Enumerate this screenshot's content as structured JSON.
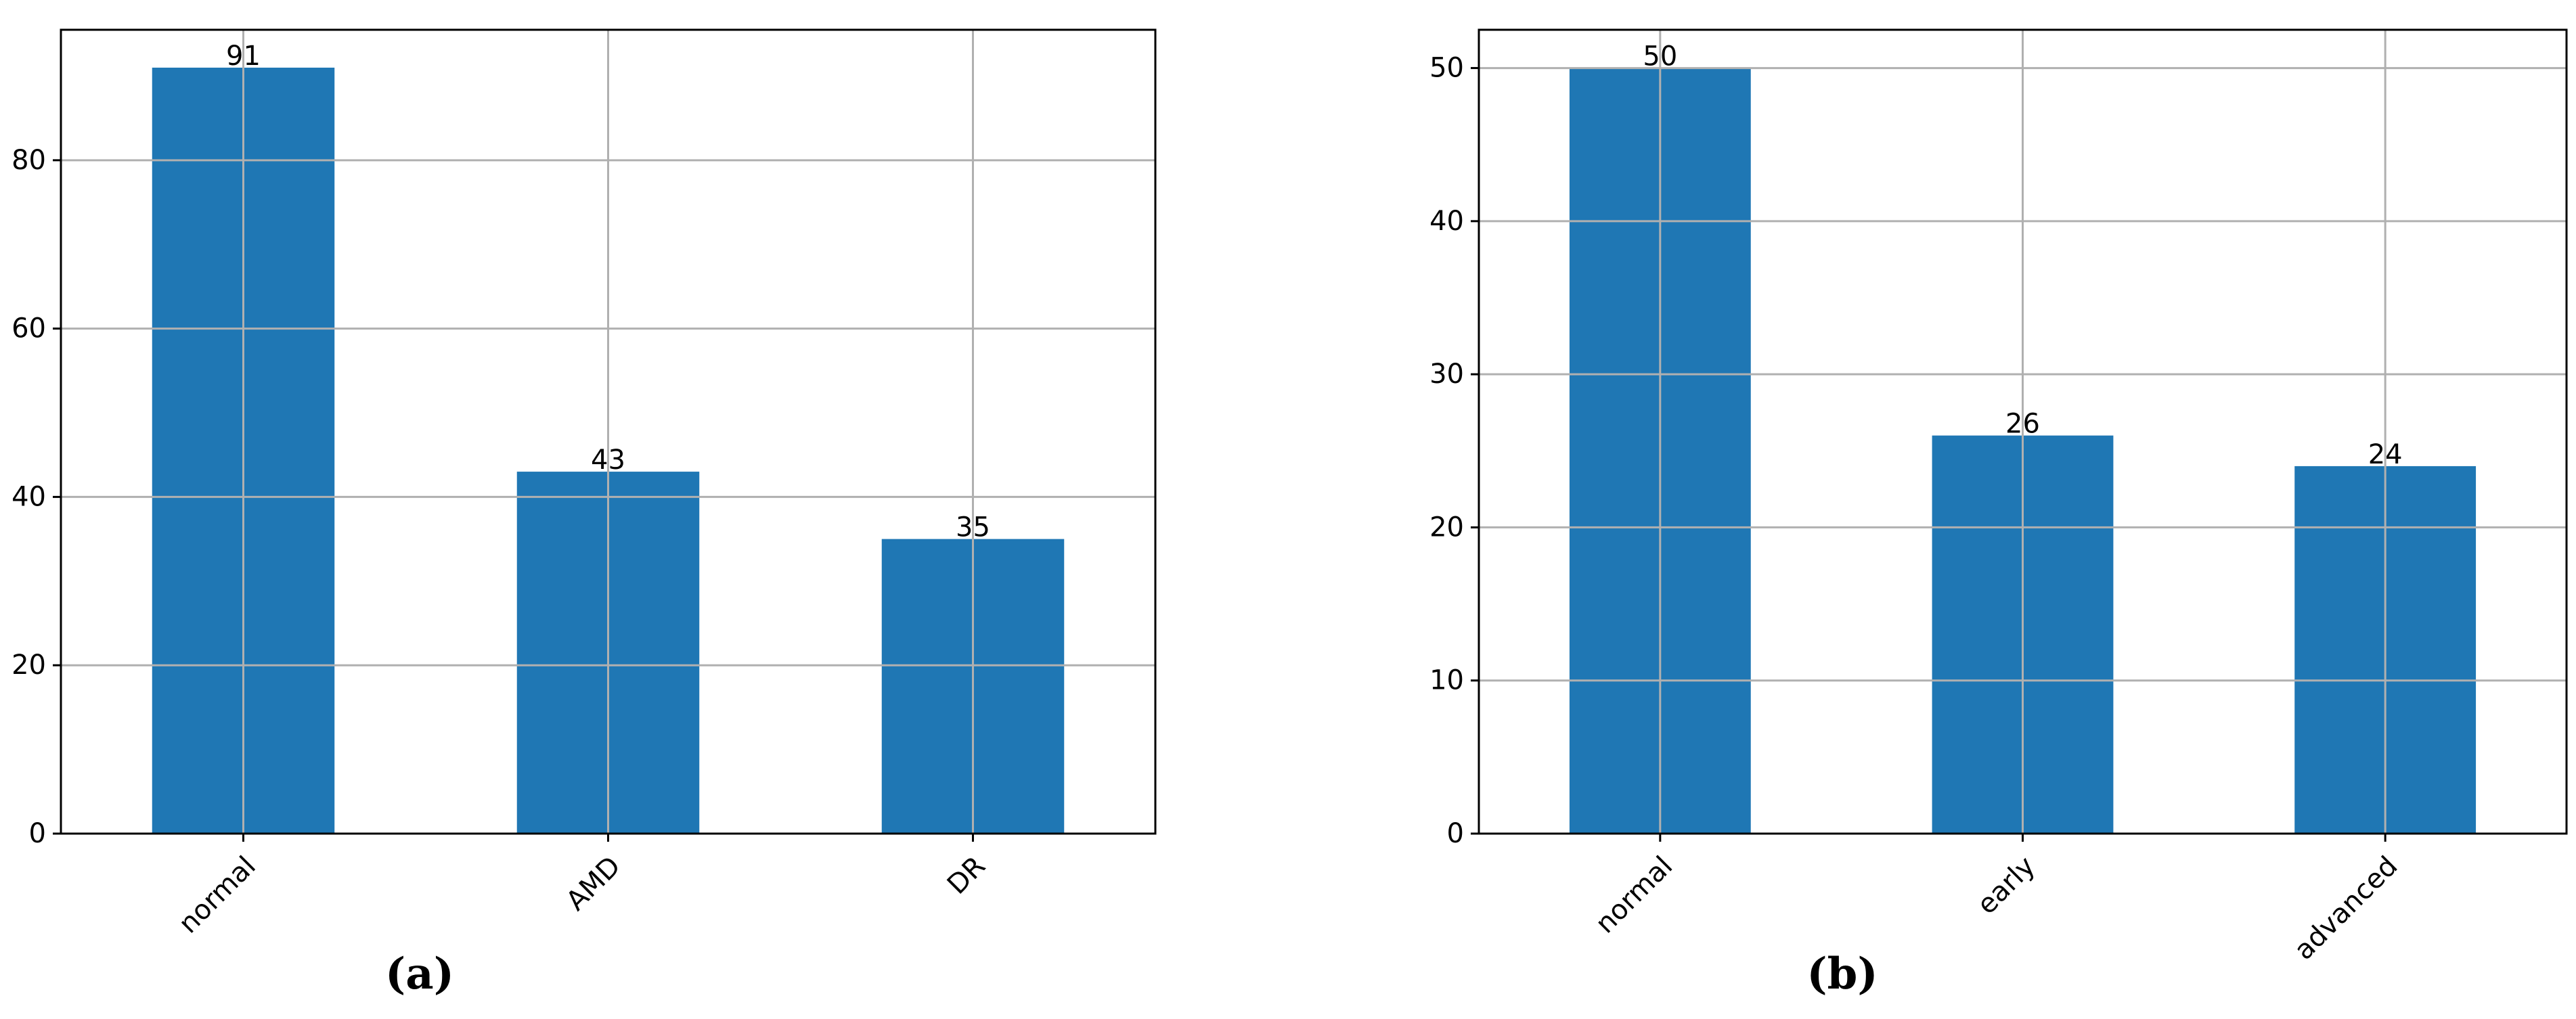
{
  "panels": [
    {
      "caption": "(a)"
    },
    {
      "caption": "(b)"
    }
  ],
  "chart_data": [
    {
      "type": "bar",
      "categories": [
        "normal",
        "AMD",
        "DR"
      ],
      "values": [
        91,
        43,
        35
      ],
      "data_labels": [
        "91",
        "43",
        "35"
      ],
      "ylim": [
        0,
        95.5
      ],
      "yticks": [
        0,
        20,
        40,
        60,
        80
      ],
      "xlabel": "",
      "ylabel": "",
      "title": "",
      "grid": true,
      "bar_color": "#1f77b4"
    },
    {
      "type": "bar",
      "categories": [
        "normal",
        "early",
        "advanced"
      ],
      "values": [
        50,
        26,
        24
      ],
      "data_labels": [
        "50",
        "26",
        "24"
      ],
      "ylim": [
        0,
        52.5
      ],
      "yticks": [
        0,
        10,
        20,
        30,
        40,
        50
      ],
      "xlabel": "",
      "ylabel": "",
      "title": "",
      "grid": true,
      "bar_color": "#1f77b4"
    }
  ]
}
